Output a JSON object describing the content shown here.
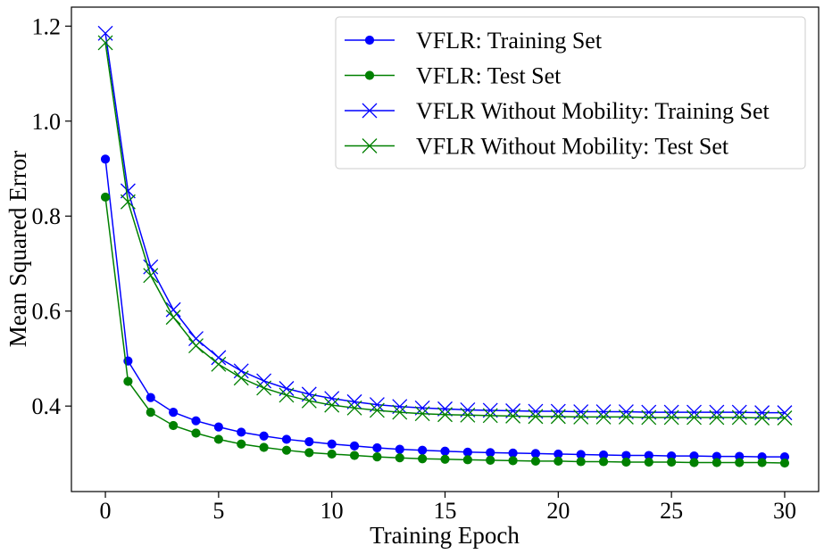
{
  "chart_data": {
    "type": "line",
    "title": "",
    "xlabel": "Training Epoch",
    "ylabel": "Mean Squared Error",
    "xlim": [
      -1.5,
      31.5
    ],
    "ylim": [
      0.22,
      1.24
    ],
    "xticks": [
      0,
      5,
      10,
      15,
      20,
      25,
      30
    ],
    "xtick_labels": [
      "0",
      "5",
      "10",
      "15",
      "20",
      "25",
      "30"
    ],
    "yticks": [
      0.4,
      0.6,
      0.8,
      1.0,
      1.2
    ],
    "ytick_labels": [
      "0.4",
      "0.6",
      "0.8",
      "1.0",
      "1.2"
    ],
    "grid": false,
    "legend_position": "top-right",
    "x": [
      0,
      1,
      2,
      3,
      4,
      5,
      6,
      7,
      8,
      9,
      10,
      11,
      12,
      13,
      14,
      15,
      16,
      17,
      18,
      19,
      20,
      21,
      22,
      23,
      24,
      25,
      26,
      27,
      28,
      29,
      30
    ],
    "series": [
      {
        "name": "VFLR: Training Set",
        "color": "#0000ff",
        "marker": "circle",
        "values": [
          0.92,
          0.495,
          0.418,
          0.387,
          0.369,
          0.356,
          0.345,
          0.337,
          0.33,
          0.325,
          0.32,
          0.316,
          0.312,
          0.309,
          0.307,
          0.305,
          0.303,
          0.302,
          0.301,
          0.3,
          0.299,
          0.298,
          0.297,
          0.296,
          0.296,
          0.295,
          0.295,
          0.294,
          0.294,
          0.293,
          0.293
        ]
      },
      {
        "name": "VFLR: Test Set",
        "color": "#008000",
        "marker": "circle",
        "values": [
          0.84,
          0.452,
          0.387,
          0.359,
          0.343,
          0.33,
          0.32,
          0.313,
          0.307,
          0.302,
          0.299,
          0.296,
          0.293,
          0.291,
          0.289,
          0.288,
          0.287,
          0.286,
          0.285,
          0.284,
          0.284,
          0.283,
          0.283,
          0.282,
          0.282,
          0.282,
          0.281,
          0.281,
          0.281,
          0.281,
          0.28
        ]
      },
      {
        "name": "VFLR Without Mobility: Training Set",
        "color": "#0000ff",
        "marker": "x",
        "values": [
          1.185,
          0.853,
          0.693,
          0.603,
          0.542,
          0.502,
          0.474,
          0.453,
          0.437,
          0.425,
          0.416,
          0.409,
          0.403,
          0.399,
          0.396,
          0.394,
          0.392,
          0.391,
          0.39,
          0.389,
          0.389,
          0.388,
          0.388,
          0.388,
          0.387,
          0.387,
          0.387,
          0.387,
          0.387,
          0.386,
          0.386
        ]
      },
      {
        "name": "VFLR Without Mobility: Test Set",
        "color": "#008000",
        "marker": "x",
        "values": [
          1.165,
          0.83,
          0.675,
          0.587,
          0.527,
          0.488,
          0.459,
          0.438,
          0.423,
          0.411,
          0.402,
          0.396,
          0.391,
          0.387,
          0.384,
          0.382,
          0.381,
          0.38,
          0.379,
          0.378,
          0.378,
          0.377,
          0.377,
          0.377,
          0.376,
          0.376,
          0.376,
          0.376,
          0.376,
          0.375,
          0.375
        ]
      }
    ]
  }
}
